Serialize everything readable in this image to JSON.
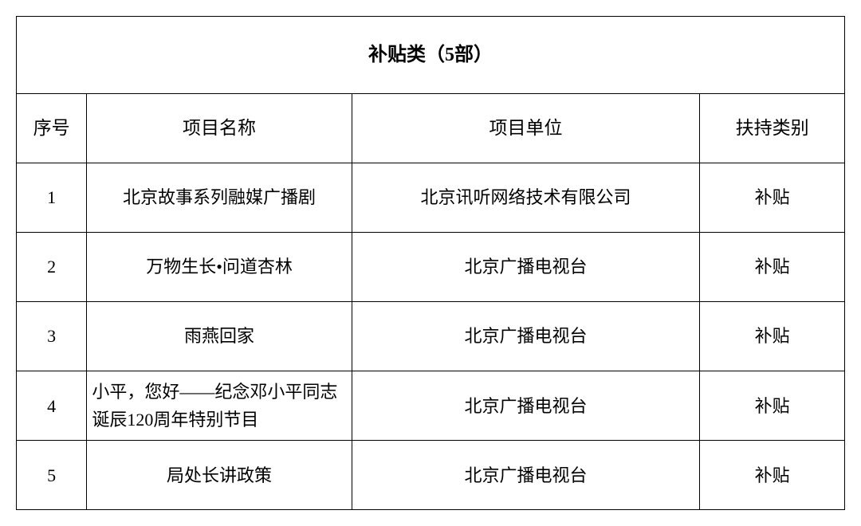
{
  "table": {
    "title": "补贴类（5部）",
    "columns": [
      {
        "key": "seq",
        "label": "序号",
        "class": "col-seq"
      },
      {
        "key": "name",
        "label": "项目名称",
        "class": "col-name"
      },
      {
        "key": "unit",
        "label": "项目单位",
        "class": "col-unit"
      },
      {
        "key": "type",
        "label": "扶持类别",
        "class": "col-type"
      }
    ],
    "rows": [
      {
        "seq": "1",
        "name": "北京故事系列融媒广播剧",
        "unit": "北京讯听网络技术有限公司",
        "type": "补贴",
        "multiline": false
      },
      {
        "seq": "2",
        "name": "万物生长•问道杏林",
        "unit": "北京广播电视台",
        "type": "补贴",
        "multiline": false
      },
      {
        "seq": "3",
        "name": "雨燕回家",
        "unit": "北京广播电视台",
        "type": "补贴",
        "multiline": false
      },
      {
        "seq": "4",
        "name": "小平，您好——纪念邓小平同志诞辰120周年特别节目",
        "unit": "北京广播电视台",
        "type": "补贴",
        "multiline": true
      },
      {
        "seq": "5",
        "name": "局处长讲政策",
        "unit": "北京广播电视台",
        "type": "补贴",
        "multiline": false
      }
    ],
    "border_color": "#000000",
    "background_color": "#ffffff",
    "text_color": "#000000",
    "title_fontsize": 24,
    "header_fontsize": 23,
    "cell_fontsize": 22
  }
}
